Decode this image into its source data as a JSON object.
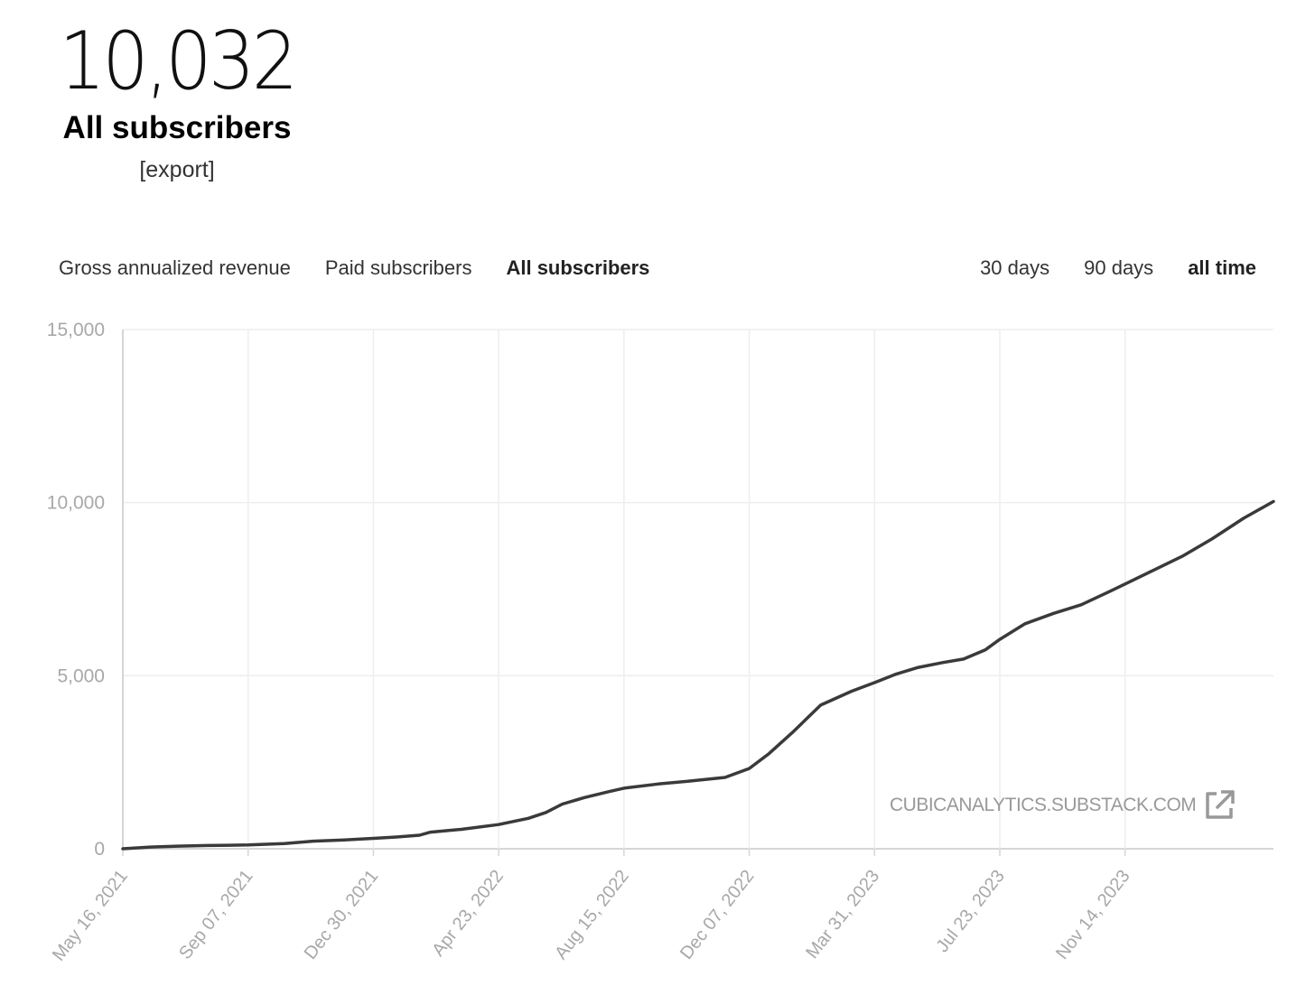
{
  "summary": {
    "count": "10,032",
    "label": "All subscribers",
    "export_label": "[export]"
  },
  "metric_tabs": [
    {
      "label": "Gross annualized revenue",
      "active": false
    },
    {
      "label": "Paid subscribers",
      "active": false
    },
    {
      "label": "All subscribers",
      "active": true
    }
  ],
  "range_tabs": [
    {
      "label": "30 days",
      "active": false
    },
    {
      "label": "90 days",
      "active": false
    },
    {
      "label": "all time",
      "active": true
    }
  ],
  "watermark": {
    "text": "CUBICANALYTICS.SUBSTACK.COM",
    "icon": "external-link-icon"
  },
  "colors": {
    "line": "#3a3a3a",
    "grid": "#eeeeee",
    "axis_text": "#a8a8a8"
  },
  "chart_data": {
    "type": "line",
    "title": "",
    "xlabel": "",
    "ylabel": "",
    "ylim": [
      0,
      15000
    ],
    "xlim": [
      "2021-05-16",
      "2024-03-28"
    ],
    "yticks": [
      0,
      5000,
      10000,
      15000
    ],
    "ytick_labels": [
      "0",
      "5,000",
      "10,000",
      "15,000"
    ],
    "xticks": [
      "2021-05-16",
      "2021-09-07",
      "2021-12-30",
      "2022-04-23",
      "2022-08-15",
      "2022-12-07",
      "2023-03-31",
      "2023-07-23",
      "2023-11-14"
    ],
    "xtick_labels": [
      "May 16, 2021",
      "Sep 07, 2021",
      "Dec 30, 2021",
      "Apr 23, 2022",
      "Aug 15, 2022",
      "Dec 07, 2022",
      "Mar 31, 2023",
      "Jul 23, 2023",
      "Nov 14, 2023"
    ],
    "grid": true,
    "series": [
      {
        "x": [
          "2021-05-16",
          "2021-06-10",
          "2021-07-05",
          "2021-08-01",
          "2021-09-07",
          "2021-10-10",
          "2021-11-05",
          "2021-12-01",
          "2021-12-30",
          "2022-01-20",
          "2022-02-10",
          "2022-02-20",
          "2022-03-20",
          "2022-04-23",
          "2022-05-20",
          "2022-06-05",
          "2022-06-20",
          "2022-07-10",
          "2022-08-01",
          "2022-08-15",
          "2022-09-15",
          "2022-10-15",
          "2022-11-15",
          "2022-12-07",
          "2022-12-25",
          "2023-01-15",
          "2023-02-10",
          "2023-03-10",
          "2023-03-31",
          "2023-04-20",
          "2023-05-10",
          "2023-06-01",
          "2023-06-20",
          "2023-07-10",
          "2023-07-23",
          "2023-08-15",
          "2023-09-10",
          "2023-10-05",
          "2023-11-01",
          "2023-11-14",
          "2023-12-10",
          "2024-01-05",
          "2024-02-01",
          "2024-03-01",
          "2024-03-28"
        ],
        "y": [
          0,
          50,
          75,
          95,
          110,
          150,
          220,
          250,
          300,
          340,
          390,
          480,
          560,
          700,
          880,
          1050,
          1290,
          1480,
          1650,
          1750,
          1870,
          1960,
          2060,
          2320,
          2750,
          3350,
          4150,
          4550,
          4800,
          5050,
          5240,
          5380,
          5480,
          5750,
          6050,
          6500,
          6800,
          7050,
          7450,
          7650,
          8050,
          8450,
          8950,
          9550,
          10032
        ]
      }
    ]
  }
}
